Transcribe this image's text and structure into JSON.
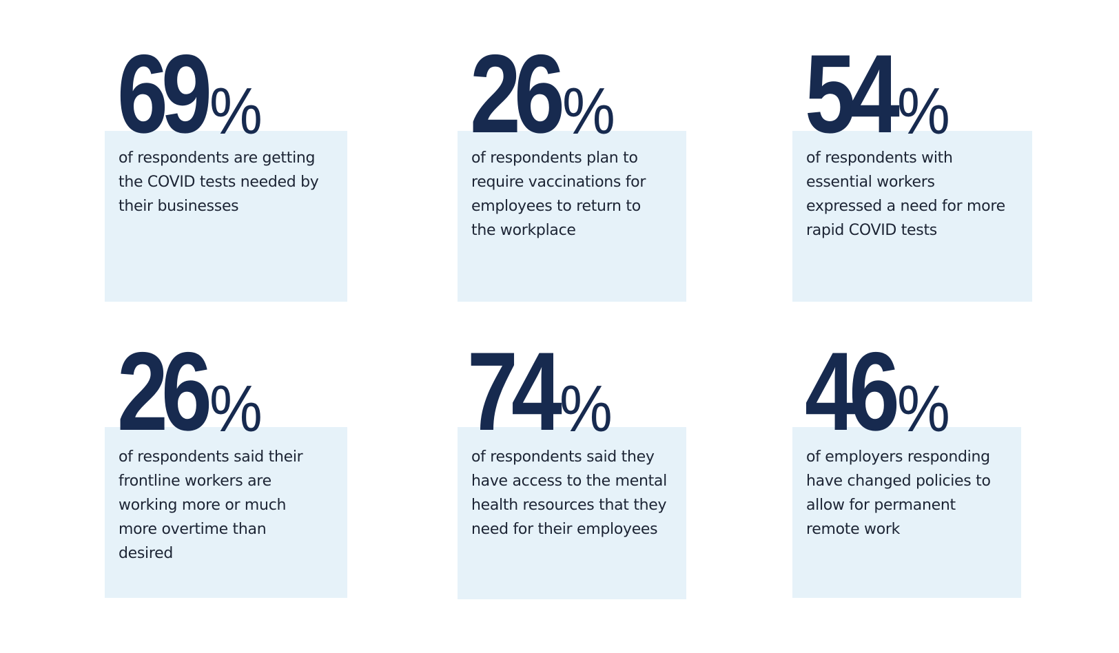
{
  "colors": {
    "figure": "#172a4f",
    "box": "#e6f2f9",
    "text": "#1c2434"
  },
  "stats": [
    {
      "number": "69",
      "percent": "%",
      "description": "of respondents are getting the COVID tests needed by their businesses"
    },
    {
      "number": "26",
      "percent": "%",
      "description": "of respondents plan to require vaccinations for employees to return to the workplace"
    },
    {
      "number": "54",
      "percent": "%",
      "description": "of respondents with essential workers expressed a need for more rapid COVID tests"
    },
    {
      "number": "26",
      "percent": "%",
      "description": "of respondents said their frontline workers are working more or much more overtime than desired"
    },
    {
      "number": "74",
      "percent": "%",
      "description": "of respondents said they have access to the mental health resources that they need for their employees"
    },
    {
      "number": "46",
      "percent": "%",
      "description": "of employers responding have changed policies to allow for permanent remote work"
    }
  ]
}
